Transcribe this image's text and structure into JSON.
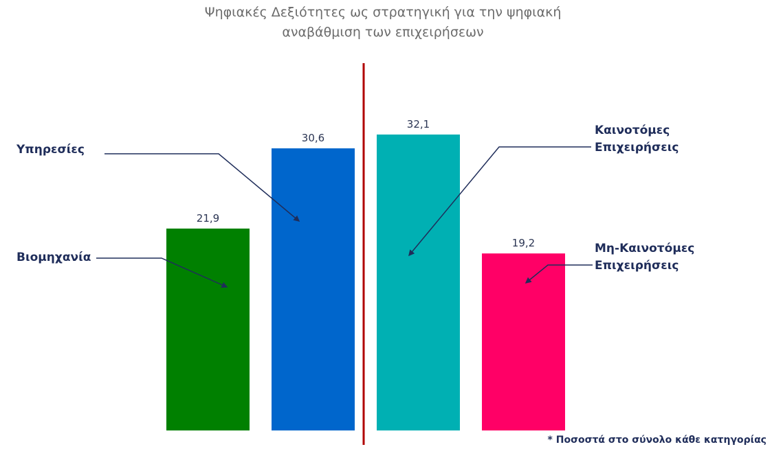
{
  "chart_data": {
    "type": "bar",
    "title": "Ψηφιακές Δεξιότητες ως στρατηγική για την ψηφιακή αναβάθμιση των επιχειρήσεων",
    "categories": [
      "Βιομηχανία",
      "Υπηρεσίες",
      "Καινοτόμες Επιχειρήσεις",
      "Μη-Καινοτόμες Επιχειρήσεις"
    ],
    "values": [
      21.9,
      30.6,
      32.1,
      19.2
    ],
    "value_labels": [
      "21,9",
      "30,6",
      "32,1",
      "19,2"
    ],
    "colors": [
      "#008000",
      "#0066cc",
      "#00b0b3",
      "#ff0066"
    ],
    "ylim": [
      0,
      35
    ],
    "note": "* Ποσοστά στο σύνολο κάθε κατηγορίας"
  }
}
